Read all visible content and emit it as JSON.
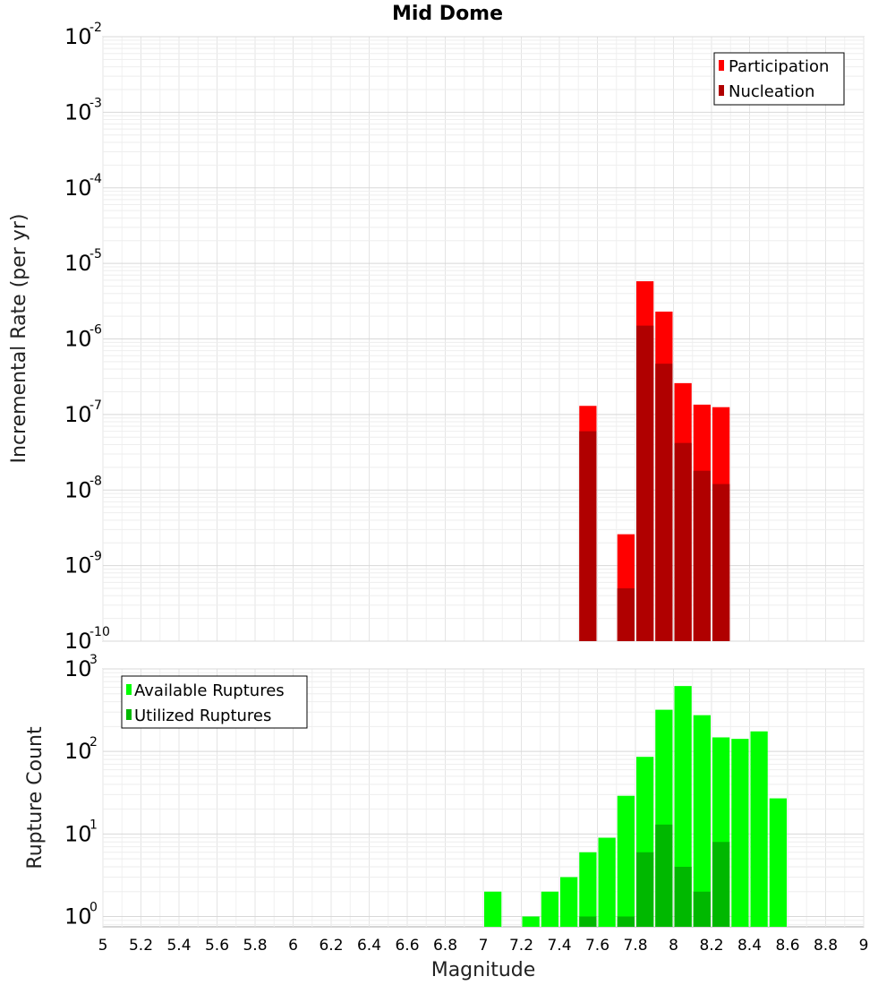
{
  "figure": {
    "title": "Mid Dome",
    "xlabel": "Magnitude",
    "xlim": [
      5,
      9
    ],
    "xticks": [
      "5",
      "5.2",
      "5.4",
      "5.6",
      "5.8",
      "6",
      "6.2",
      "6.4",
      "6.6",
      "6.8",
      "7",
      "7.2",
      "7.4",
      "7.6",
      "7.8",
      "8",
      "8.2",
      "8.4",
      "8.6",
      "8.8",
      "9"
    ]
  },
  "chart_data": [
    {
      "type": "bar",
      "title": "Mid Dome",
      "xlabel": "Magnitude",
      "ylabel": "Incremental Rate (per yr)",
      "yscale": "log",
      "ylim": [
        1e-10,
        0.01
      ],
      "ytick_exponents": [
        "-10",
        "-9",
        "-8",
        "-7",
        "-6",
        "-5",
        "-4",
        "-3",
        "-2"
      ],
      "grid": true,
      "legend_position": "top-right",
      "series": [
        {
          "name": "Participation",
          "color": "#ff0000",
          "x": [
            7.55,
            7.75,
            7.85,
            7.95,
            8.05,
            8.15,
            8.25
          ],
          "values": [
            1.3e-07,
            2.6e-09,
            5.8e-06,
            2.3e-06,
            2.6e-07,
            1.35e-07,
            1.25e-07
          ]
        },
        {
          "name": "Nucleation",
          "color": "#b00000",
          "x": [
            7.55,
            7.75,
            7.85,
            7.95,
            8.05,
            8.15,
            8.25
          ],
          "values": [
            6e-08,
            5e-10,
            1.5e-06,
            4.7e-07,
            4.2e-08,
            1.8e-08,
            1.2e-08
          ]
        }
      ]
    },
    {
      "type": "bar",
      "xlabel": "Magnitude",
      "ylabel": "Rupture Count",
      "yscale": "log",
      "ylim": [
        0.75,
        1000
      ],
      "ytick_exponents": [
        "0",
        "1",
        "2",
        "3"
      ],
      "grid": true,
      "legend_position": "top-left",
      "series": [
        {
          "name": "Available Ruptures",
          "color": "#00ff00",
          "x": [
            7.05,
            7.25,
            7.35,
            7.45,
            7.55,
            7.65,
            7.75,
            7.85,
            7.95,
            8.05,
            8.15,
            8.25,
            8.35,
            8.45,
            8.55
          ],
          "values": [
            2,
            1,
            2,
            3,
            6,
            9,
            29,
            86,
            320,
            620,
            275,
            148,
            142,
            175,
            27
          ]
        },
        {
          "name": "Utilized Ruptures",
          "color": "#00b800",
          "x": [
            7.55,
            7.75,
            7.85,
            7.95,
            8.05,
            8.15,
            8.25
          ],
          "values": [
            1,
            1,
            6,
            13,
            4,
            2,
            8
          ]
        }
      ]
    }
  ]
}
